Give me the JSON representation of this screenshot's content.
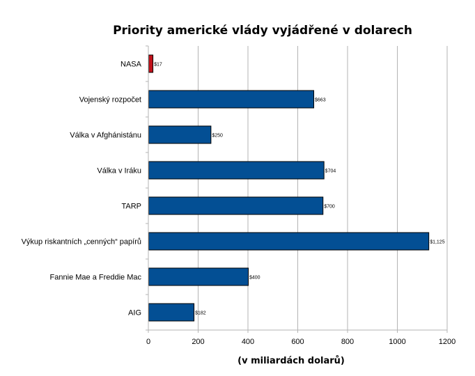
{
  "chart_data": {
    "type": "bar",
    "orientation": "horizontal",
    "title": "Priority americké vlády vyjádřené v dolarech",
    "xlabel": "(v miliardách dolarů)",
    "ylabel": "",
    "xlim": [
      0,
      1200
    ],
    "x_ticks": [
      0,
      200,
      400,
      600,
      800,
      1000,
      1200
    ],
    "grid": "vertical",
    "legend": "none",
    "categories": [
      "NASA",
      "Vojenský rozpočet",
      "Válka v Afghánistánu",
      "Válka v Iráku",
      "TARP",
      "Výkup riskantních „cenných“ papírů",
      "Fannie Mae a Freddie Mac",
      "AIG"
    ],
    "values": [
      17,
      663,
      250,
      704,
      700,
      1125,
      400,
      182
    ],
    "data_labels": [
      "$17",
      "$663",
      "$250",
      "$704",
      "$700",
      "$1,125",
      "$400",
      "$182"
    ],
    "bar_colors": [
      "#c0121b",
      "#034f94",
      "#034f94",
      "#034f94",
      "#034f94",
      "#034f94",
      "#034f94",
      "#034f94"
    ]
  }
}
